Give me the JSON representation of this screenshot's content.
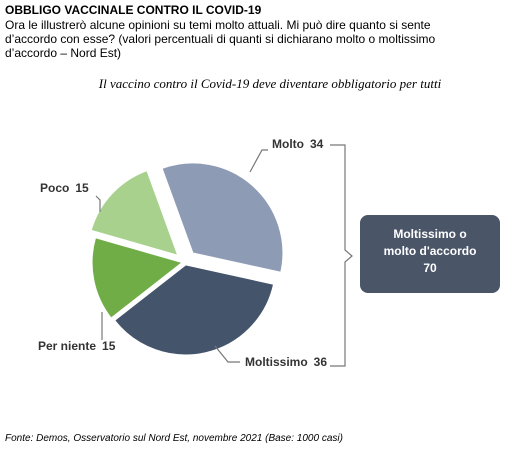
{
  "header": {
    "title": "OBBLIGO VACCINALE CONTRO IL COVID-19",
    "subtitle": "Ora le illustrerò alcune opinioni su temi molto attuali. Mi può dire quanto si sente d’accordo con esse? (valori percentuali di quanti si dichiarano molto o moltissimo d’accordo – Nord Est)"
  },
  "chart_data": {
    "type": "pie",
    "title": "Il vaccino contro il Covid-19 deve diventare obbligatorio per tutti",
    "categories": [
      "Molto",
      "Moltissimo",
      "Per niente",
      "Poco"
    ],
    "values": [
      34,
      36,
      15,
      15
    ],
    "colors": [
      "#8d9bb5",
      "#44546a",
      "#70ad47",
      "#a9d18e"
    ],
    "summary": {
      "lines": [
        "Moltissimo o",
        "molto d'accordo"
      ],
      "value": 70
    }
  },
  "footer": {
    "source": "Fonte: Demos, Osservatorio sul Nord Est, novembre 2021 (Base: 1000 casi)"
  }
}
